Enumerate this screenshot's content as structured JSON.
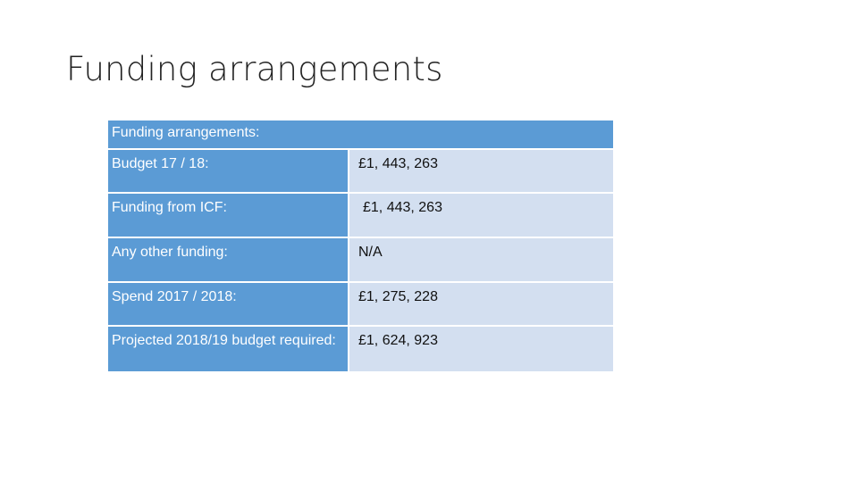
{
  "slide": {
    "title": "Funding arrangements"
  },
  "table": {
    "header": "Funding arrangements:",
    "rows": [
      {
        "label": "Budget 17 / 18:",
        "value": "£1, 443, 263"
      },
      {
        "label": "Funding from ICF:",
        "value": "£1, 443, 263"
      },
      {
        "label": "Any other funding:",
        "value": "N/A"
      },
      {
        "label": "Spend 2017 / 2018:",
        "value": "£1, 275, 228"
      },
      {
        "label": "Projected 2018/19 budget required:",
        "value": "£1, 624, 923"
      }
    ]
  },
  "colors": {
    "header_fill": "#5b9bd5",
    "label_fill": "#5b9bd5",
    "value_fill": "#d3dff0"
  }
}
